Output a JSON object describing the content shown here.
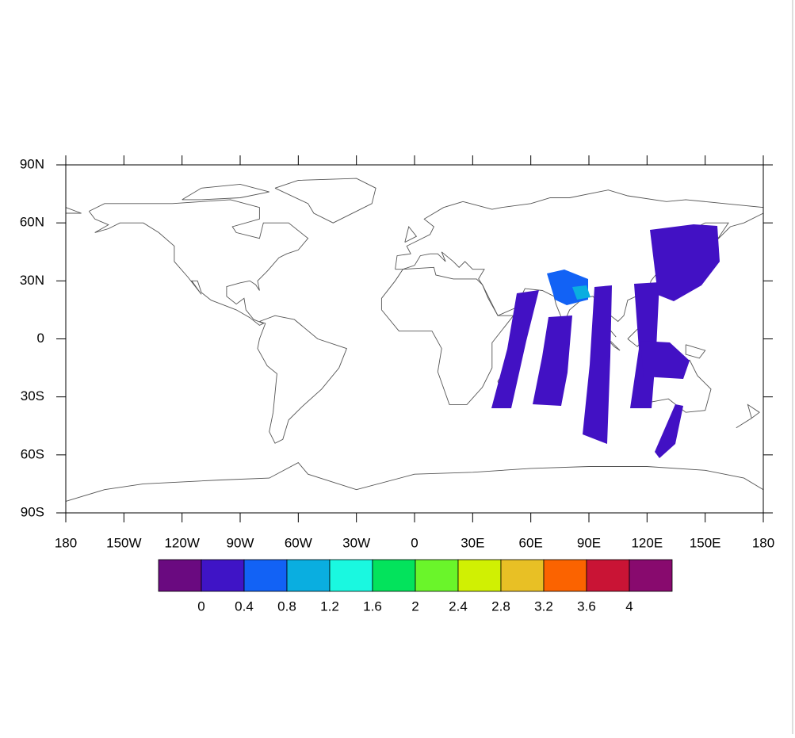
{
  "map": {
    "xticks": [
      {
        "value": -180,
        "label": "180"
      },
      {
        "value": -150,
        "label": "150W"
      },
      {
        "value": -120,
        "label": "120W"
      },
      {
        "value": -90,
        "label": "90W"
      },
      {
        "value": -60,
        "label": "60W"
      },
      {
        "value": -30,
        "label": "30W"
      },
      0,
      {
        "value": 30,
        "label": "30E"
      },
      {
        "value": 60,
        "label": "60E"
      },
      {
        "value": 90,
        "label": "90E"
      },
      {
        "value": 120,
        "label": "120E"
      },
      {
        "value": 150,
        "label": "150E"
      },
      {
        "value": 180,
        "label": "180"
      }
    ],
    "yticks": [
      {
        "value": 90,
        "label": "90N"
      },
      {
        "value": 60,
        "label": "60N"
      },
      {
        "value": 30,
        "label": "30N"
      },
      0,
      {
        "value": -30,
        "label": "30S"
      },
      {
        "value": -60,
        "label": "60S"
      },
      {
        "value": -90,
        "label": "90S"
      }
    ],
    "xlim": [
      -180,
      180
    ],
    "ylim": [
      -90,
      90
    ],
    "colorbar": {
      "levels": [
        0,
        0.4,
        0.8,
        1.2,
        1.6,
        2,
        2.4,
        2.8,
        3.2,
        3.6,
        4
      ],
      "colors": [
        "#6a0a80",
        "#3f14c6",
        "#1262f5",
        "#0aaee0",
        "#1af8e0",
        "#03e35c",
        "#6af52a",
        "#d0f003",
        "#e8c025",
        "#fb6300",
        "#c91435",
        "#880a6e"
      ]
    }
  }
}
